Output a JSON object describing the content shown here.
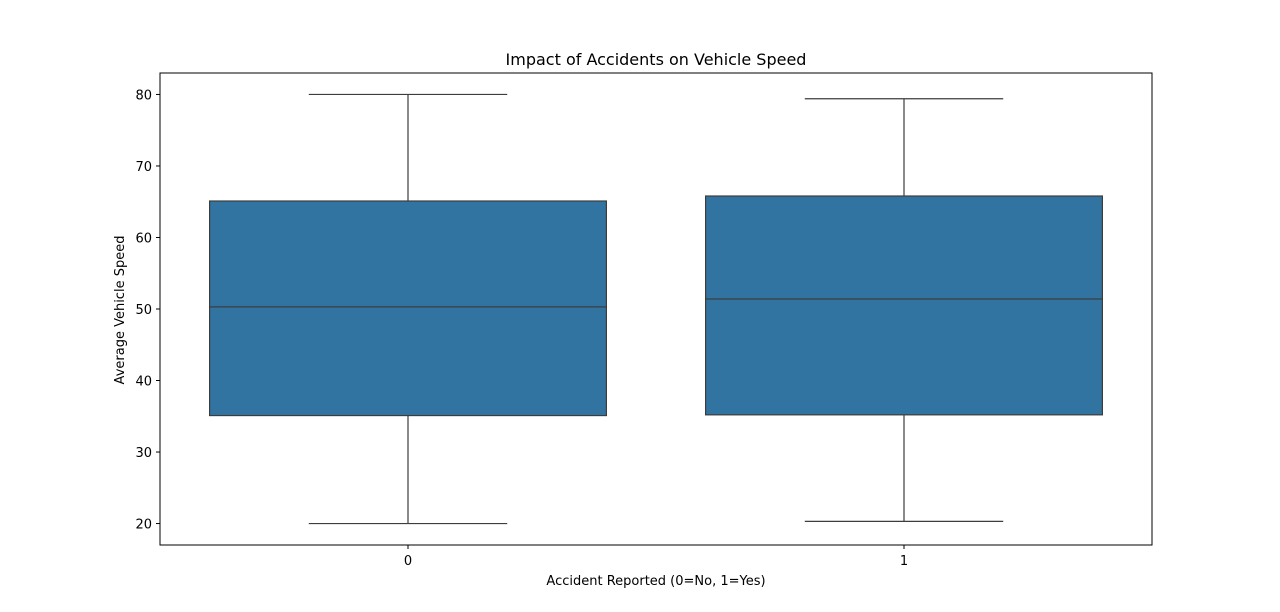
{
  "chart_data": {
    "type": "box",
    "title": "Impact of Accidents on Vehicle Speed",
    "xlabel": "Accident Reported (0=No, 1=Yes)",
    "ylabel": "Average Vehicle Speed",
    "categories": [
      "0",
      "1"
    ],
    "ylim": [
      17,
      83
    ],
    "yticks": [
      20,
      30,
      40,
      50,
      60,
      70,
      80
    ],
    "grid": false,
    "boxes": [
      {
        "category": "0",
        "whisker_low": 20.0,
        "q1": 35.1,
        "median": 50.3,
        "q3": 65.1,
        "whisker_high": 80.0
      },
      {
        "category": "1",
        "whisker_low": 20.3,
        "q1": 35.2,
        "median": 51.4,
        "q3": 65.8,
        "whisker_high": 79.4
      }
    ],
    "colors": {
      "box_fill": "#3274a1",
      "line": "#3d3d3d",
      "frame": "#000000"
    }
  }
}
